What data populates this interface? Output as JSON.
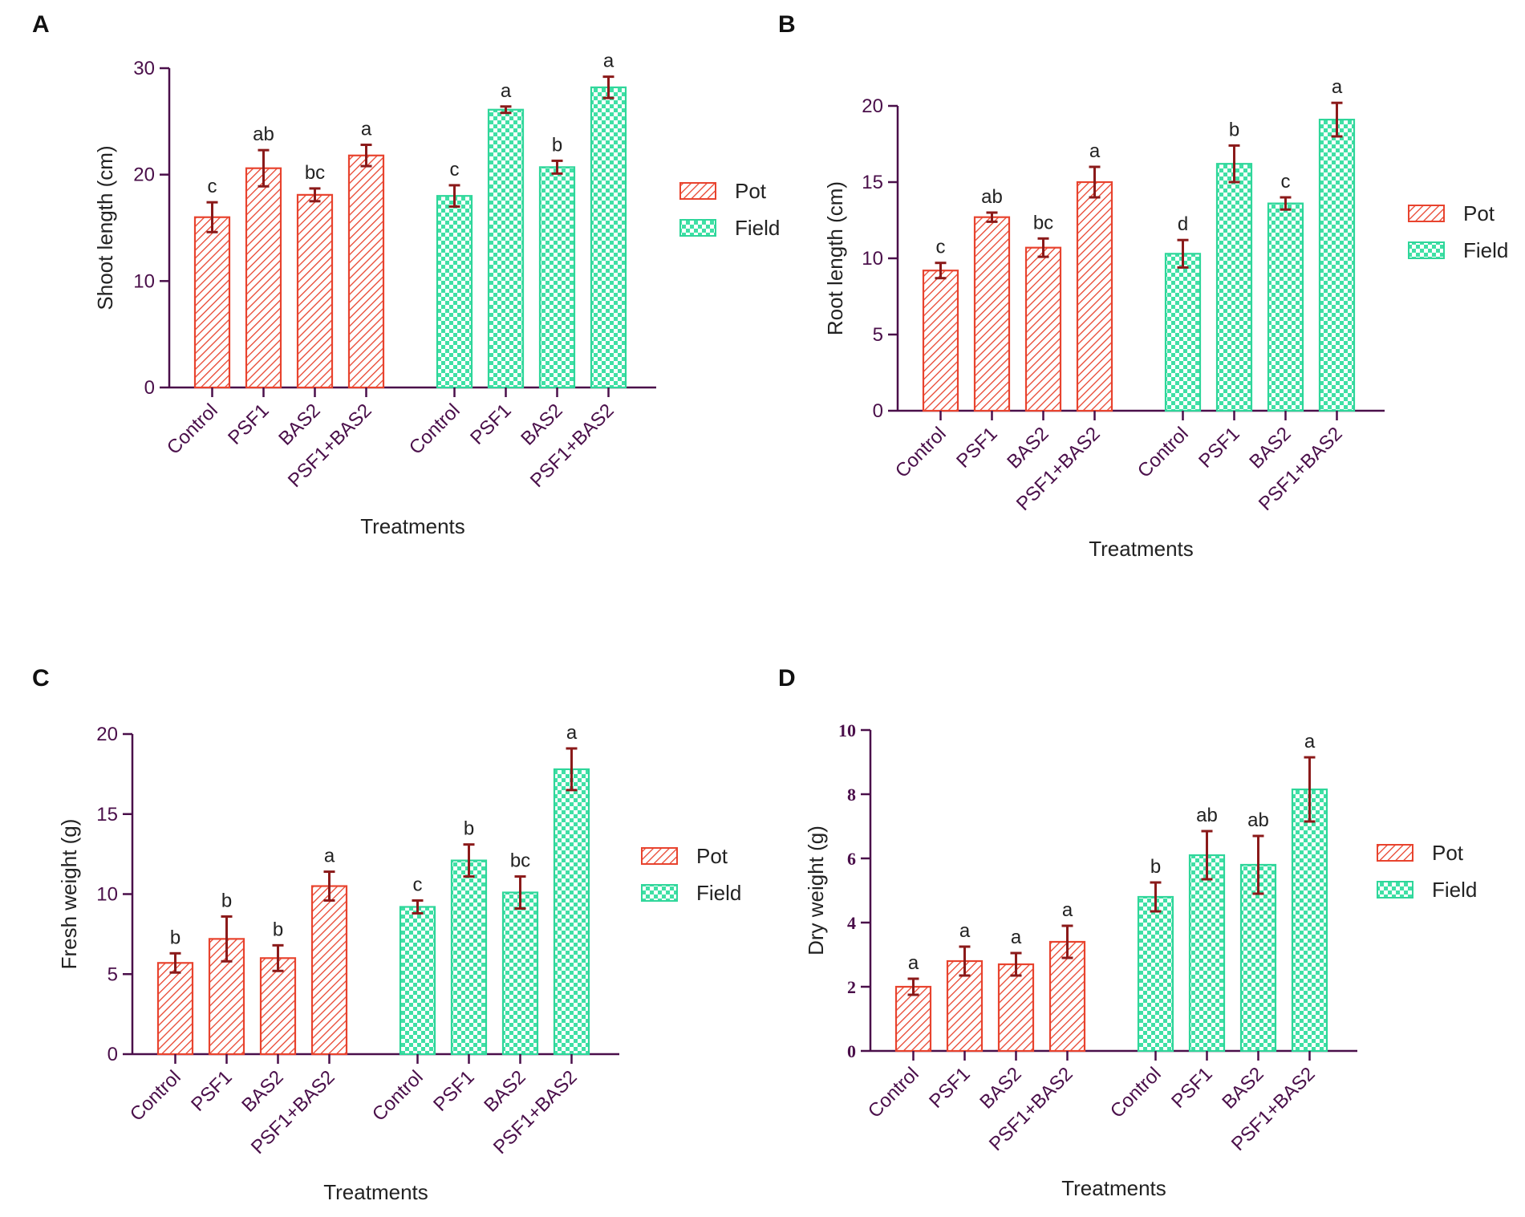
{
  "chart_data": [
    {
      "panel": "A",
      "type": "bar",
      "title": "",
      "xlabel": "Treatments",
      "ylabel": "Shoot length (cm)",
      "ylim": [
        0,
        30
      ],
      "yticks": [
        0,
        10,
        20,
        30
      ],
      "tick_font": "sans",
      "categories": [
        "Control",
        "PSF1",
        "BAS2",
        "PSF1+BAS2"
      ],
      "legend": [
        "Pot",
        "Field"
      ],
      "series": [
        {
          "name": "Pot",
          "values": [
            16.0,
            20.6,
            18.1,
            21.8
          ],
          "errors": [
            1.4,
            1.7,
            0.6,
            1.0
          ],
          "letters": [
            "c",
            "ab",
            "bc",
            "a"
          ]
        },
        {
          "name": "Field",
          "values": [
            18.0,
            26.1,
            20.7,
            28.2
          ],
          "errors": [
            1.0,
            0.3,
            0.6,
            1.0
          ],
          "letters": [
            "c",
            "a",
            "b",
            "a"
          ]
        }
      ]
    },
    {
      "panel": "B",
      "type": "bar",
      "title": "",
      "xlabel": "Treatments",
      "ylabel": "Root length (cm)",
      "ylim": [
        0,
        20
      ],
      "yticks": [
        0,
        5,
        10,
        15,
        20
      ],
      "tick_font": "sans",
      "categories": [
        "Control",
        "PSF1",
        "BAS2",
        "PSF1+BAS2"
      ],
      "legend": [
        "Pot",
        "Field"
      ],
      "series": [
        {
          "name": "Pot",
          "values": [
            9.2,
            12.7,
            10.7,
            15.0
          ],
          "errors": [
            0.5,
            0.3,
            0.6,
            1.0
          ],
          "letters": [
            "c",
            "ab",
            "bc",
            "a"
          ]
        },
        {
          "name": "Field",
          "values": [
            10.3,
            16.2,
            13.6,
            19.1
          ],
          "errors": [
            0.9,
            1.2,
            0.4,
            1.1
          ],
          "letters": [
            "d",
            "b",
            "c",
            "a"
          ]
        }
      ]
    },
    {
      "panel": "C",
      "type": "bar",
      "title": "",
      "xlabel": "Treatments",
      "ylabel": "Fresh weight (g)",
      "ylim": [
        0,
        20
      ],
      "yticks": [
        0,
        5,
        10,
        15,
        20
      ],
      "tick_font": "sans",
      "categories": [
        "Control",
        "PSF1",
        "BAS2",
        "PSF1+BAS2"
      ],
      "legend": [
        "Pot",
        "Field"
      ],
      "series": [
        {
          "name": "Pot",
          "values": [
            5.7,
            7.2,
            6.0,
            10.5
          ],
          "errors": [
            0.6,
            1.4,
            0.8,
            0.9
          ],
          "letters": [
            "b",
            "b",
            "b",
            "a"
          ]
        },
        {
          "name": "Field",
          "values": [
            9.2,
            12.1,
            10.1,
            17.8
          ],
          "errors": [
            0.4,
            1.0,
            1.0,
            1.3
          ],
          "letters": [
            "c",
            "b",
            "bc",
            "a"
          ]
        }
      ]
    },
    {
      "panel": "D",
      "type": "bar",
      "title": "",
      "xlabel": "Treatments",
      "ylabel": "Dry weight (g)",
      "ylim": [
        0,
        10
      ],
      "yticks": [
        0,
        2,
        4,
        6,
        8,
        10
      ],
      "tick_font": "serif",
      "categories": [
        "Control",
        "PSF1",
        "BAS2",
        "PSF1+BAS2"
      ],
      "legend": [
        "Pot",
        "Field"
      ],
      "series": [
        {
          "name": "Pot",
          "values": [
            2.0,
            2.8,
            2.7,
            3.4
          ],
          "errors": [
            0.25,
            0.45,
            0.35,
            0.5
          ],
          "letters": [
            "a",
            "a",
            "a",
            "a"
          ]
        },
        {
          "name": "Field",
          "values": [
            4.8,
            6.1,
            5.8,
            8.15
          ],
          "errors": [
            0.45,
            0.75,
            0.9,
            1.0
          ],
          "letters": [
            "b",
            "ab",
            "ab",
            "a"
          ]
        }
      ]
    }
  ],
  "colors": {
    "pot_stroke": "#e8432e",
    "field_stroke": "#2fd69a",
    "field_fill": "#3fe0a5",
    "error_bar": "#8b1a1a",
    "axis": "#4a0f4a",
    "tick_text": "#4a0f4a"
  }
}
